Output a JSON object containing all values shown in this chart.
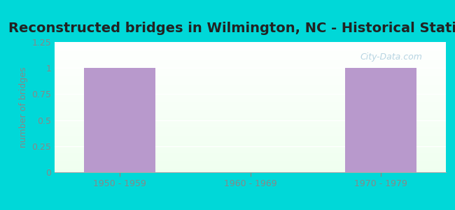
{
  "title": "Reconstructed bridges in Wilmington, NC - Historical Statistics",
  "categories": [
    "1950 - 1959",
    "1960 - 1969",
    "1970 - 1979"
  ],
  "values": [
    1,
    0,
    1
  ],
  "bar_color": "#b899cc",
  "background_color": "#00d8d8",
  "plot_bg_top_left": "#ddf0e0",
  "plot_bg_top_right": "#e8f8e8",
  "plot_bg_bottom": "#f8fff8",
  "ylabel": "number of bridges",
  "ylim": [
    0,
    1.25
  ],
  "yticks": [
    0,
    0.25,
    0.5,
    0.75,
    1.0,
    1.25
  ],
  "title_fontsize": 14,
  "bar_width": 0.55,
  "grid_color": "#ccddcc",
  "tick_color": "#888888",
  "label_color": "#888888",
  "ylabel_color": "#888888",
  "title_color": "#222222",
  "watermark": "City-Data.com",
  "watermark_color": "#aaccdd"
}
